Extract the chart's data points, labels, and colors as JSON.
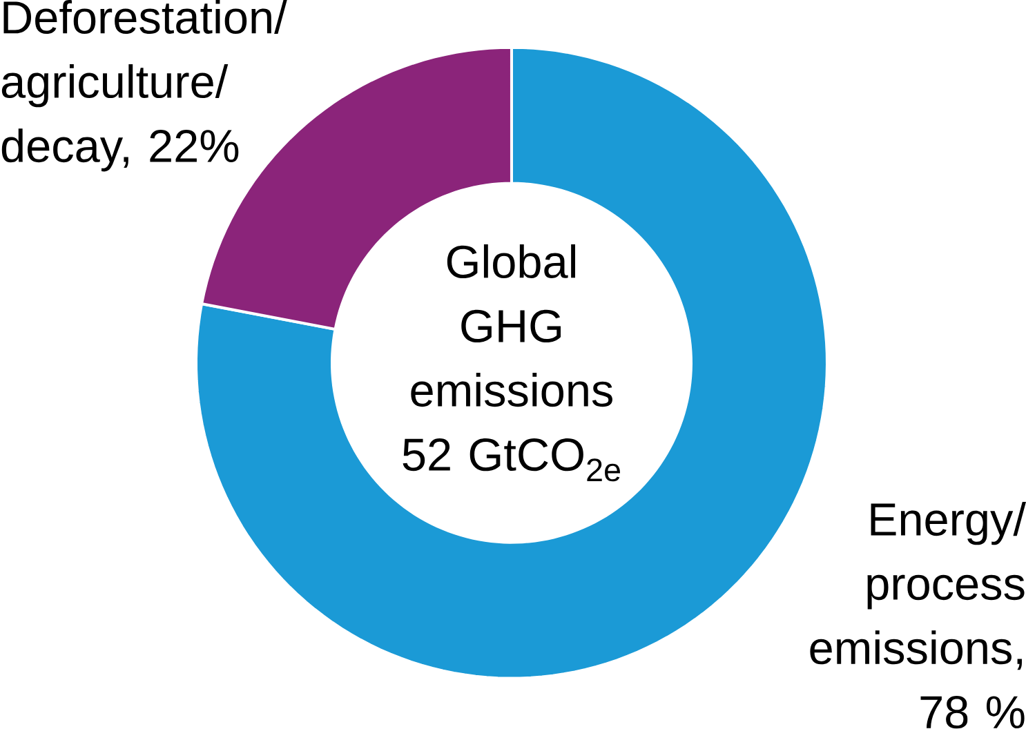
{
  "chart_data": {
    "type": "donut",
    "title": "Global GHG emissions 52 GtCO$_{2e}$",
    "categories": [
      "Energy/ process emissions, 78 %",
      "Deforestation/ agriculture/ decay, 22%"
    ],
    "values": [
      78,
      22
    ],
    "colors": [
      "#1b9ad6",
      "#8b247a"
    ]
  }
}
